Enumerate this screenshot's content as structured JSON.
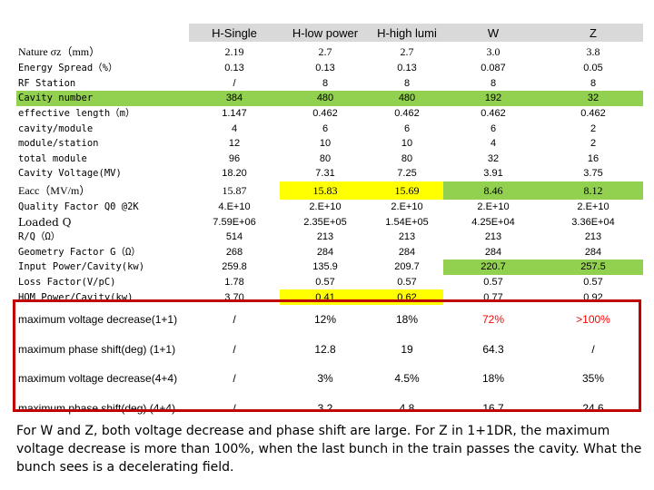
{
  "headers": [
    "",
    "H-Single",
    "H-low power",
    "H-high lumi",
    "W",
    "Z"
  ],
  "rows": [
    {
      "label": "Nature σz（mm）",
      "cells": [
        "2.19",
        "2.7",
        "2.7",
        "3.0",
        "3.8"
      ],
      "style": "ph"
    },
    {
      "label": "Energy Spread（%）",
      "cells": [
        "0.13",
        "0.13",
        "0.13",
        "0.087",
        "0.05"
      ]
    },
    {
      "label": "RF Station",
      "cells": [
        "/",
        "8",
        "8",
        "8",
        "8"
      ]
    },
    {
      "label": "Cavity number",
      "cells": [
        "384",
        "480",
        "480",
        "192",
        "32"
      ],
      "style": "green"
    },
    {
      "label": "effective length（m）",
      "cells": [
        "1.147",
        "0.462",
        "0.462",
        "0.462",
        "0.462"
      ]
    },
    {
      "label": "cavity/module",
      "cells": [
        "4",
        "6",
        "6",
        "6",
        "2"
      ]
    },
    {
      "label": "module/station",
      "cells": [
        "12",
        "10",
        "10",
        "4",
        "2"
      ]
    },
    {
      "label": "total module",
      "cells": [
        "96",
        "80",
        "80",
        "32",
        "16"
      ]
    },
    {
      "label": "Cavity Voltage(MV)",
      "cells": [
        "18.20",
        "7.31",
        "7.25",
        "3.91",
        "3.75"
      ]
    },
    {
      "label": "Eacc（MV/m）",
      "cells": [
        "15.87",
        "15.83",
        "15.69",
        "8.46",
        "8.12"
      ],
      "style": "ph",
      "highlight": {
        "1": "yellow",
        "2": "yellow",
        "3": "green",
        "4": "green"
      }
    },
    {
      "label": "Quality Factor Q0 @2K",
      "cells": [
        "4.E+10",
        "2.E+10",
        "2.E+10",
        "2.E+10",
        "2.E+10"
      ]
    },
    {
      "label": "Loaded Q",
      "cells": [
        "7.59E+06",
        "2.35E+05",
        "1.54E+05",
        "4.25E+04",
        "3.36E+04"
      ],
      "labelSerif": true
    },
    {
      "label": "R/Q（Ω）",
      "cells": [
        "514",
        "213",
        "213",
        "213",
        "213"
      ]
    },
    {
      "label": "Geometry Factor G（Ω）",
      "cells": [
        "268",
        "284",
        "284",
        "284",
        "284"
      ]
    },
    {
      "label": "Input Power/Cavity(kw)",
      "cells": [
        "259.8",
        "135.9",
        "209.7",
        "220.7",
        "257.5"
      ],
      "highlight": {
        "3": "green",
        "4": "green"
      }
    },
    {
      "label": "Loss Factor(V/pC)",
      "cells": [
        "1.78",
        "0.57",
        "0.57",
        "0.57",
        "0.57"
      ]
    },
    {
      "label": "HOM Power/Cavity(kw)",
      "cells": [
        "3.70",
        "0.41",
        "0.62",
        "0.77",
        "0.92"
      ],
      "highlight": {
        "1": "yellow",
        "2": "yellow"
      }
    },
    {
      "label": "maximum voltage decrease(1+1)",
      "cells": [
        "/",
        "12%",
        "18%",
        "72%",
        ">100%"
      ],
      "style": "big",
      "red": [
        3,
        4
      ]
    },
    {
      "label": "maximum phase shift(deg) (1+1)",
      "cells": [
        "/",
        "12.8",
        "19",
        "64.3",
        "/"
      ],
      "style": "big"
    },
    {
      "label": "maximum voltage decrease(4+4)",
      "cells": [
        "/",
        "3%",
        "4.5%",
        "18%",
        "35%"
      ],
      "style": "big"
    },
    {
      "label": "maximum phase shift(deg) (4+4)",
      "cells": [
        "/",
        "3.2",
        "4.8",
        "16.7",
        "24.6"
      ],
      "style": "big"
    }
  ],
  "note": "For W and Z, both voltage decrease and phase shift are large. For Z in 1+1DR, the maximum voltage decrease is more than 100%, when the last bunch in the train passes the cavity. What the bunch sees is a decelerating field."
}
